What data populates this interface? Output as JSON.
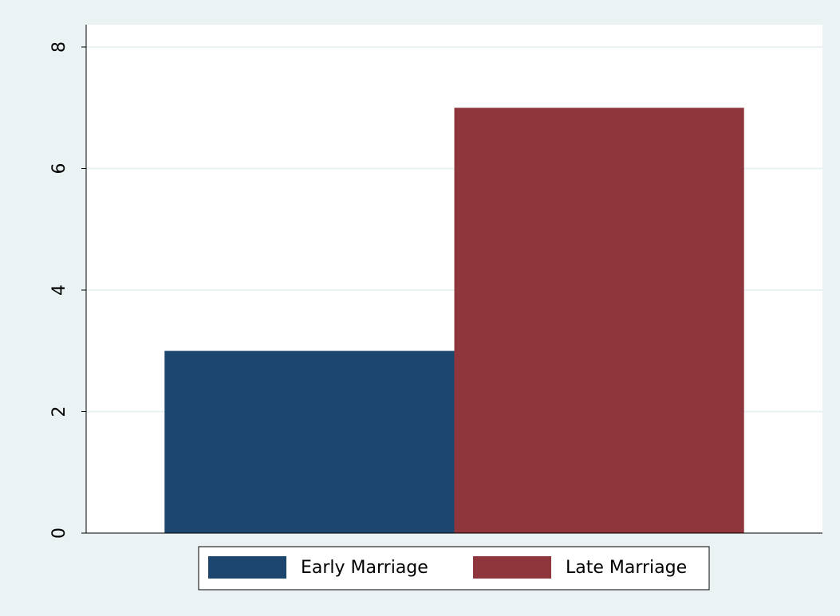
{
  "chart_data": {
    "type": "bar",
    "categories": [
      null
    ],
    "series": [
      {
        "name": "Early Marriage",
        "color": "#1c466d",
        "values": [
          3
        ]
      },
      {
        "name": "Late Marriage",
        "color": "#8f353c",
        "values": [
          7
        ]
      }
    ],
    "ylim": [
      0,
      8
    ],
    "yticks": [
      0,
      2,
      4,
      6,
      8
    ],
    "grid": true,
    "legend": "bottom"
  }
}
